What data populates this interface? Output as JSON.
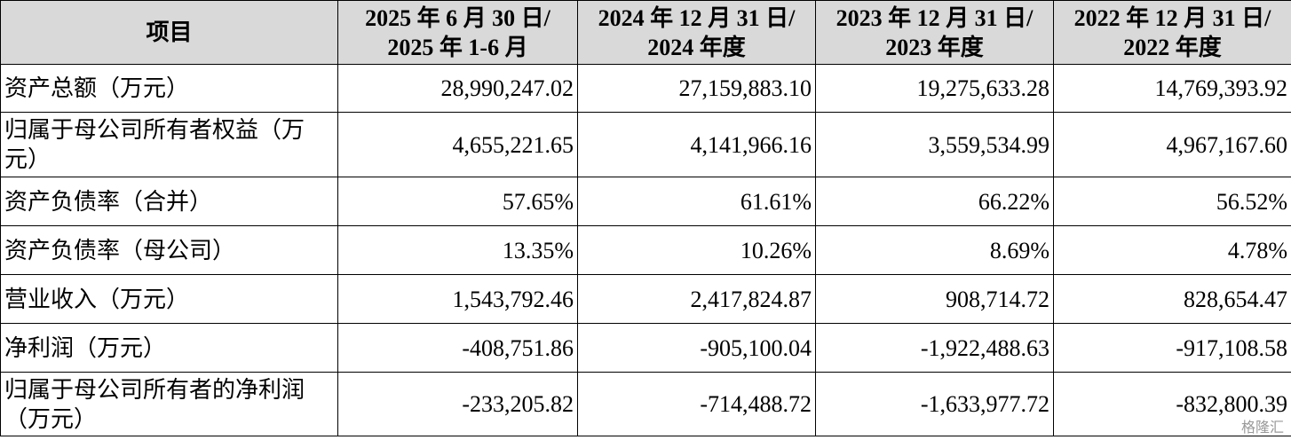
{
  "table": {
    "header": [
      [
        "项目"
      ],
      [
        "2025 年 6 月 30 日/",
        "2025 年 1-6 月"
      ],
      [
        "2024 年 12 月 31 日/",
        "2024 年度"
      ],
      [
        "2023 年 12 月 31 日/",
        "2023 年度"
      ],
      [
        "2022 年 12 月 31 日/",
        "2022 年度"
      ]
    ],
    "rows": [
      [
        "资产总额（万元）",
        "28,990,247.02",
        "27,159,883.10",
        "19,275,633.28",
        "14,769,393.92"
      ],
      [
        "归属于母公司所有者权益（万元）",
        "4,655,221.65",
        "4,141,966.16",
        "3,559,534.99",
        "4,967,167.60"
      ],
      [
        "资产负债率（合并）",
        "57.65%",
        "61.61%",
        "66.22%",
        "56.52%"
      ],
      [
        "资产负债率（母公司）",
        "13.35%",
        "10.26%",
        "8.69%",
        "4.78%"
      ],
      [
        "营业收入（万元）",
        "1,543,792.46",
        "2,417,824.87",
        "908,714.72",
        "828,654.47"
      ],
      [
        "净利润（万元）",
        "-408,751.86",
        "-905,100.04",
        "-1,922,488.63",
        "-917,108.58"
      ],
      [
        "归属于母公司所有者的净利润（万元）",
        "-233,205.82",
        "-714,488.72",
        "-1,633,977.72",
        "-832,800.39"
      ]
    ]
  },
  "watermark": "格隆汇"
}
